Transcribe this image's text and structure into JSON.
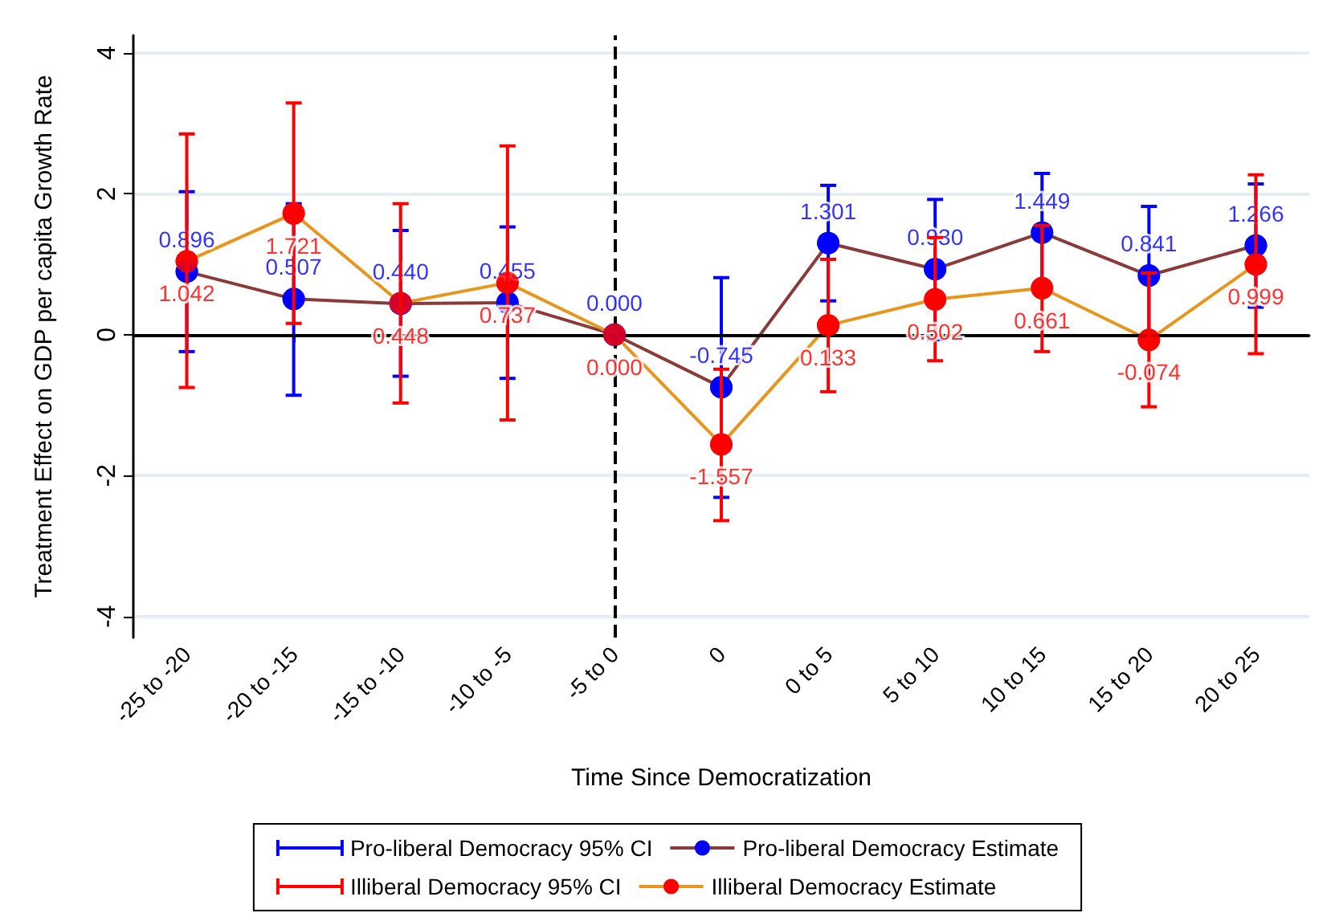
{
  "chart_data": {
    "type": "line",
    "xlabel": "Time Since Democratization",
    "ylabel": "Treatment Effect on GDP per capita Growth Rate",
    "categories": [
      "-25 to -20",
      "-20 to -15",
      "-15 to -10",
      "-10 to -5",
      "-5 to 0",
      "0",
      "0 to 5",
      "5 to 10",
      "10 to 15",
      "15 to 20",
      "20 to 25"
    ],
    "series": [
      {
        "name": "Pro-liberal Democracy 95% CI",
        "type": "scatter",
        "color": "#0000ff",
        "values": [
          0.896,
          0.507,
          0.44,
          0.455,
          0.0,
          -0.745,
          1.301,
          0.93,
          1.449,
          0.841,
          1.266
        ],
        "errors": [
          [
            -0.24,
            2.03
          ],
          [
            -0.86,
            1.86
          ],
          [
            -0.59,
            1.48
          ],
          [
            -0.62,
            1.53
          ],
          null,
          [
            -2.31,
            0.81
          ],
          [
            0.48,
            2.12
          ],
          [
            -0.07,
            1.92
          ],
          0.84,
          0.98,
          [
            0.39,
            2.14
          ]
        ],
        "value_labels": [
          "0.896",
          "0.507",
          "0.440",
          "0.455",
          "0.000",
          "-0.745",
          "1.301",
          "0.930",
          "1.449",
          "0.841",
          "1.266"
        ]
      },
      {
        "name": "Illiberal Democracy 95% CI",
        "type": "scatter",
        "color": "#ff0000",
        "values": [
          1.042,
          1.721,
          0.448,
          0.737,
          0.0,
          -1.557,
          0.133,
          0.502,
          0.661,
          -0.074,
          0.999
        ],
        "errors": [
          [
            -0.75,
            2.85
          ],
          [
            0.16,
            3.29
          ],
          [
            -0.97,
            1.86
          ],
          [
            -1.21,
            2.68
          ],
          null,
          [
            -2.64,
            -0.49
          ],
          [
            -0.81,
            1.07
          ],
          [
            -0.37,
            1.38
          ],
          [
            -0.24,
            1.55
          ],
          0.95,
          [
            -0.27,
            2.27
          ]
        ],
        "value_labels": [
          "1.042",
          "1.721",
          "0.448",
          "0.737",
          "0.000",
          "-1.557",
          "0.133",
          "0.502",
          "0.661",
          "-0.074",
          "0.999"
        ]
      },
      {
        "name": "Pro-liberal Democracy Estimate",
        "color": "#8b3a3a",
        "values": [
          0.896,
          0.507,
          0.44,
          0.455,
          0.0,
          -0.745,
          1.301,
          0.93,
          1.449,
          0.841,
          1.266
        ]
      },
      {
        "name": "Illiberal Democracy Estimate",
        "color": "#e8951e",
        "values": [
          1.042,
          1.721,
          0.448,
          0.737,
          0.0,
          -1.557,
          0.133,
          0.502,
          0.661,
          -0.074,
          0.999
        ]
      }
    ],
    "ylim": [
      -4.3,
      4.25
    ],
    "yticks": [
      -4,
      -2,
      0,
      2,
      4
    ],
    "ref_lines": [
      {
        "axis": "x",
        "value": "-5 to 0",
        "color": "#000000",
        "line_style": "dashed"
      },
      {
        "axis": "y",
        "value": 0,
        "color": "#000000",
        "line_style": "solid"
      }
    ],
    "grid": "y",
    "legend": "bottom",
    "marker": "circle",
    "line_style": "solid"
  }
}
